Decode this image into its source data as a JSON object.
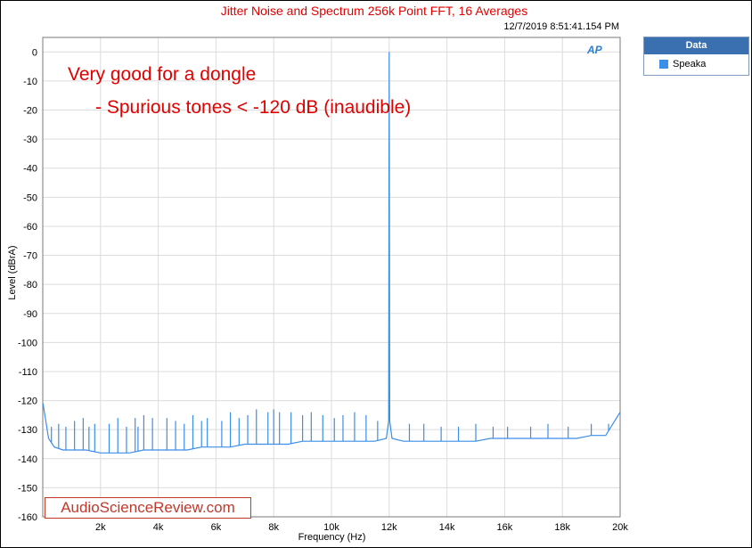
{
  "chart_data": {
    "type": "line",
    "title": "Jitter Noise and Spectrum 256k Point FFT, 16 Averages",
    "timestamp": "12/7/2019 8:51:41.154 PM",
    "xlabel": "Frequency (Hz)",
    "ylabel": "Level (dBrA)",
    "xlim": [
      0,
      20000
    ],
    "ylim": [
      -160,
      5
    ],
    "x_ticks": [
      {
        "value": 2000,
        "label": "2k"
      },
      {
        "value": 4000,
        "label": "4k"
      },
      {
        "value": 6000,
        "label": "6k"
      },
      {
        "value": 8000,
        "label": "8k"
      },
      {
        "value": 10000,
        "label": "10k"
      },
      {
        "value": 12000,
        "label": "12k"
      },
      {
        "value": 14000,
        "label": "14k"
      },
      {
        "value": 16000,
        "label": "16k"
      },
      {
        "value": 18000,
        "label": "18k"
      },
      {
        "value": 20000,
        "label": "20k"
      }
    ],
    "y_ticks": [
      {
        "value": 0,
        "label": "0"
      },
      {
        "value": -10,
        "label": "-10"
      },
      {
        "value": -20,
        "label": "-20"
      },
      {
        "value": -30,
        "label": "-30"
      },
      {
        "value": -40,
        "label": "-40"
      },
      {
        "value": -50,
        "label": "-50"
      },
      {
        "value": -60,
        "label": "-60"
      },
      {
        "value": -70,
        "label": "-70"
      },
      {
        "value": -80,
        "label": "-80"
      },
      {
        "value": -90,
        "label": "-90"
      },
      {
        "value": -100,
        "label": "-100"
      },
      {
        "value": -110,
        "label": "-110"
      },
      {
        "value": -120,
        "label": "-120"
      },
      {
        "value": -130,
        "label": "-130"
      },
      {
        "value": -140,
        "label": "-140"
      },
      {
        "value": -150,
        "label": "-150"
      },
      {
        "value": -160,
        "label": "-160"
      }
    ],
    "grid": true,
    "legend": {
      "title": "Data",
      "position": "top-right"
    },
    "series": [
      {
        "name": "Speaka",
        "color": "#3c8ee8",
        "x": [
          10,
          200,
          400,
          700,
          1000,
          1500,
          2000,
          2500,
          3000,
          3500,
          4000,
          4500,
          5000,
          5500,
          6000,
          6500,
          7000,
          7500,
          8000,
          8500,
          9000,
          9500,
          10000,
          10500,
          11000,
          11500,
          11900,
          11980,
          12000,
          12020,
          12100,
          12500,
          13000,
          13500,
          14000,
          14500,
          15000,
          15500,
          16000,
          16500,
          17000,
          17500,
          18000,
          18500,
          19000,
          19500,
          20000
        ],
        "y": [
          -121,
          -133,
          -136,
          -137,
          -137,
          -137,
          -138,
          -138,
          -138,
          -137,
          -137,
          -137,
          -137,
          -136,
          -136,
          -136,
          -135,
          -135,
          -135,
          -135,
          -134,
          -134,
          -134,
          -134,
          -134,
          -134,
          -133,
          -127,
          0,
          -127,
          -133,
          -134,
          -134,
          -134,
          -134,
          -134,
          -134,
          -133,
          -133,
          -133,
          -133,
          -133,
          -133,
          -133,
          -132,
          -132,
          -124
        ]
      }
    ],
    "spurs": [
      {
        "x": 300,
        "y": -129
      },
      {
        "x": 550,
        "y": -128
      },
      {
        "x": 800,
        "y": -129
      },
      {
        "x": 1100,
        "y": -127
      },
      {
        "x": 1400,
        "y": -126
      },
      {
        "x": 1600,
        "y": -129
      },
      {
        "x": 1800,
        "y": -128
      },
      {
        "x": 2300,
        "y": -128
      },
      {
        "x": 2600,
        "y": -126
      },
      {
        "x": 2900,
        "y": -129
      },
      {
        "x": 3200,
        "y": -126
      },
      {
        "x": 3300,
        "y": -129
      },
      {
        "x": 3500,
        "y": -125
      },
      {
        "x": 3800,
        "y": -126
      },
      {
        "x": 4300,
        "y": -126
      },
      {
        "x": 4600,
        "y": -127
      },
      {
        "x": 4900,
        "y": -128
      },
      {
        "x": 5200,
        "y": -125
      },
      {
        "x": 5500,
        "y": -127
      },
      {
        "x": 5700,
        "y": -126
      },
      {
        "x": 6200,
        "y": -127
      },
      {
        "x": 6500,
        "y": -124
      },
      {
        "x": 6800,
        "y": -126
      },
      {
        "x": 7100,
        "y": -125
      },
      {
        "x": 7400,
        "y": -123
      },
      {
        "x": 7800,
        "y": -124
      },
      {
        "x": 8000,
        "y": -123
      },
      {
        "x": 8200,
        "y": -124
      },
      {
        "x": 8600,
        "y": -124
      },
      {
        "x": 9000,
        "y": -125
      },
      {
        "x": 9300,
        "y": -124
      },
      {
        "x": 9700,
        "y": -125
      },
      {
        "x": 10100,
        "y": -126
      },
      {
        "x": 10400,
        "y": -125
      },
      {
        "x": 10800,
        "y": -124
      },
      {
        "x": 11200,
        "y": -125
      },
      {
        "x": 11600,
        "y": -127
      },
      {
        "x": 12700,
        "y": -128
      },
      {
        "x": 13200,
        "y": -128
      },
      {
        "x": 13800,
        "y": -129
      },
      {
        "x": 14400,
        "y": -129
      },
      {
        "x": 15000,
        "y": -128
      },
      {
        "x": 15600,
        "y": -129
      },
      {
        "x": 16100,
        "y": -129
      },
      {
        "x": 16900,
        "y": -129
      },
      {
        "x": 17500,
        "y": -128
      },
      {
        "x": 18200,
        "y": -129
      },
      {
        "x": 19000,
        "y": -128
      },
      {
        "x": 19600,
        "y": -128
      }
    ]
  },
  "annotations": {
    "line1": "Very good for a dongle",
    "line2": "- Spurious tones < -120 dB (inaudible)"
  },
  "watermark": "AudioScienceReview.com",
  "logo_text": "AP"
}
